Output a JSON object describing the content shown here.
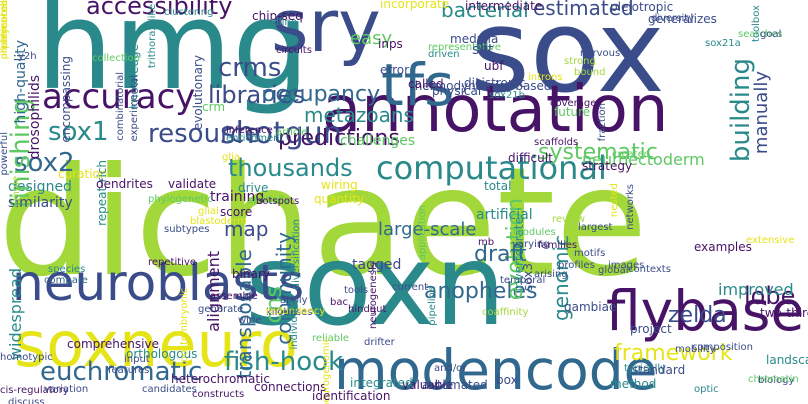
{
  "palette": {
    "green": "#a2d83a",
    "teal": "#2a8a8b",
    "navy": "#3a4c89",
    "purple": "#471366",
    "yellow": "#e5e419",
    "lightgreen": "#5ec962",
    "blue": "#31688e"
  },
  "words": [
    {
      "text": "dichaete",
      "color": "#a2d83a",
      "rot": 0
    },
    {
      "text": "sox",
      "color": "#3a4c89",
      "rot": 0
    },
    {
      "text": "hmg",
      "color": "#2a8a8b",
      "rot": 0
    },
    {
      "text": "soxn",
      "color": "#2a8a8b",
      "rot": 0
    },
    {
      "text": "annotation",
      "color": "#471366",
      "rot": 0
    },
    {
      "text": "sry",
      "color": "#3a4c89",
      "rot": 0
    },
    {
      "text": "soxneuro",
      "color": "#e5e419",
      "rot": 0
    },
    {
      "text": "neuroblasts",
      "color": "#3a4c89",
      "rot": 0
    },
    {
      "text": "flybase",
      "color": "#471366",
      "rot": 0
    },
    {
      "text": "modencode",
      "color": "#31688e",
      "rot": 0
    },
    {
      "text": "tfs",
      "color": "#31688e",
      "rot": 0
    },
    {
      "text": "computational",
      "color": "#2a8a8b",
      "rot": 0
    },
    {
      "text": "shotgun",
      "color": "#3a4c89",
      "rot": 0
    },
    {
      "text": "sox1",
      "color": "#2a8a8b",
      "rot": 0
    },
    {
      "text": "resource",
      "color": "#3a4c89",
      "rot": 0
    },
    {
      "text": "sox2",
      "color": "#31688e",
      "rot": 0
    },
    {
      "text": "accuracy",
      "color": "#471366",
      "rot": 0
    },
    {
      "text": "crms",
      "color": "#3a4c89",
      "rot": 0
    },
    {
      "text": "libraries",
      "color": "#3a4c89",
      "rot": 0
    },
    {
      "text": "occupancy",
      "color": "#31688e",
      "rot": 0
    },
    {
      "text": "metazoans",
      "color": "#2a8a8b",
      "rot": 0
    },
    {
      "text": "predictions",
      "color": "#471366",
      "rot": 0
    },
    {
      "text": "thousands",
      "color": "#2a8a8b",
      "rot": 0
    },
    {
      "text": "systematic",
      "color": "#5ec962",
      "rot": 0
    },
    {
      "text": "accessibility",
      "color": "#471366",
      "rot": 0
    },
    {
      "text": "bacterial",
      "color": "#2a8a8b",
      "rot": 0
    },
    {
      "text": "estimated",
      "color": "#3a4c89",
      "rot": 0
    },
    {
      "text": "finishing",
      "color": "#5ec962",
      "rot": 90
    },
    {
      "text": "building",
      "color": "#2a8a8b",
      "rot": 90
    },
    {
      "text": "euchromatic",
      "color": "#31688e",
      "rot": 0
    },
    {
      "text": "fish-hook",
      "color": "#2a8a8b",
      "rot": 0
    },
    {
      "text": "framework",
      "color": "#e5e419",
      "rot": 0
    },
    {
      "text": "anopheles",
      "color": "#31688e",
      "rot": 0
    },
    {
      "text": "lobe",
      "color": "#471366",
      "rot": 0
    },
    {
      "text": "zelda",
      "color": "#3a4c89",
      "rot": 0
    },
    {
      "text": "transposable",
      "color": "#31688e",
      "rot": 90
    },
    {
      "text": "community",
      "color": "#31688e",
      "rot": 90
    },
    {
      "text": "evolution",
      "color": "#5ec962",
      "rot": 90
    },
    {
      "text": "draft",
      "color": "#31688e",
      "rot": 0
    },
    {
      "text": "map",
      "color": "#3a4c89",
      "rot": 0
    },
    {
      "text": "cns",
      "color": "#5ec962",
      "rot": 90
    },
    {
      "text": "easy",
      "color": "#5ec962",
      "rot": 0
    },
    {
      "text": "manually",
      "color": "#3a4c89",
      "rot": 90
    },
    {
      "text": "comprehensive",
      "color": "#471366",
      "rot": 0
    },
    {
      "text": "orthologous",
      "color": "#2a8a8b",
      "rot": 0
    },
    {
      "text": "heterochromatic",
      "color": "#471366",
      "rot": 0
    },
    {
      "text": "connections",
      "color": "#471366",
      "rot": 0
    },
    {
      "text": "neuroectoderm",
      "color": "#5ec962",
      "rot": 0
    },
    {
      "text": "thermodynamics-based",
      "color": "#3a4c89",
      "rot": 0
    },
    {
      "text": "large-scale",
      "color": "#31688e",
      "rot": 0
    },
    {
      "text": "tagged",
      "color": "#3a4c89",
      "rot": 0
    },
    {
      "text": "examples",
      "color": "#471366",
      "rot": 0
    },
    {
      "text": "improved",
      "color": "#2a8a8b",
      "rot": 0
    },
    {
      "text": "genomic",
      "color": "#2a8a8b",
      "rot": 90
    },
    {
      "text": "binary",
      "color": "#471366",
      "rot": 0
    },
    {
      "text": "alignment",
      "color": "#471366",
      "rot": 90
    },
    {
      "text": "score",
      "color": "#471366",
      "rot": 0
    },
    {
      "text": "training",
      "color": "#471366",
      "rot": 0
    },
    {
      "text": "drive",
      "color": "#2a8a8b",
      "rot": 0
    },
    {
      "text": "challenges",
      "color": "#5ec962",
      "rot": 0
    },
    {
      "text": "wiring",
      "color": "#e5e419",
      "rot": 0
    },
    {
      "text": "quantity",
      "color": "#e5e419",
      "rot": 0
    },
    {
      "text": "total",
      "color": "#2a8a8b",
      "rot": 0
    },
    {
      "text": "artificial",
      "color": "#2a8a8b",
      "rot": 0
    },
    {
      "text": "strategy",
      "color": "#471366",
      "rot": 0
    },
    {
      "text": "designed",
      "color": "#2a8a8b",
      "rot": 0
    },
    {
      "text": "curation",
      "color": "#e5e419",
      "rot": 0
    },
    {
      "text": "similarity",
      "color": "#3a4c89",
      "rot": 0
    },
    {
      "text": "validate",
      "color": "#471366",
      "rot": 0
    },
    {
      "text": "widespread",
      "color": "#2a8a8b",
      "rot": 90
    },
    {
      "text": "species",
      "color": "#2a8a8b",
      "rot": 0
    },
    {
      "text": "compare",
      "color": "#31688e",
      "rot": 0
    },
    {
      "text": "assemble",
      "color": "#471366",
      "rot": 0
    },
    {
      "text": "generate",
      "color": "#3a4c89",
      "rot": 0
    },
    {
      "text": "kilobases",
      "color": "#3a4c89",
      "rot": 0
    },
    {
      "text": "redundancy",
      "color": "#e5e419",
      "rot": 0
    },
    {
      "text": "tools",
      "color": "#3a4c89",
      "rot": 0
    },
    {
      "text": "bac",
      "color": "#471366",
      "rot": 0
    },
    {
      "text": "apply",
      "color": "#3a4c89",
      "rot": 0
    },
    {
      "text": "reliable",
      "color": "#5ec962",
      "rot": 0
    },
    {
      "text": "hindgut",
      "color": "#471366",
      "rot": 0
    },
    {
      "text": "current",
      "color": "#3a4c89",
      "rot": 0
    },
    {
      "text": "wide",
      "color": "#3a4c89",
      "rot": 0
    },
    {
      "text": "mb",
      "color": "#471366",
      "rot": 0
    },
    {
      "text": "sox3",
      "color": "#3a4c89",
      "rot": 90
    },
    {
      "text": "gambiae",
      "color": "#3a4c89",
      "rot": 0
    },
    {
      "text": "two-thirds",
      "color": "#471366",
      "rot": 0
    },
    {
      "text": "high-quality",
      "color": "#31688e",
      "rot": 90
    },
    {
      "text": "drosophilids",
      "color": "#471366",
      "rot": 90
    },
    {
      "text": "encompassing",
      "color": "#3a4c89",
      "rot": 90
    },
    {
      "text": "knowledge",
      "color": "#2a8a8b",
      "rot": 90
    },
    {
      "text": "evolutionary",
      "color": "#3a4c89",
      "rot": 90
    },
    {
      "text": "crm",
      "color": "#5ec962",
      "rot": 0
    },
    {
      "text": "clustering",
      "color": "#2a8a8b",
      "rot": 0
    },
    {
      "text": "chip-seq",
      "color": "#471366",
      "rot": 0
    },
    {
      "text": "midline",
      "color": "#2a8a8b",
      "rot": 0
    },
    {
      "text": "circuits",
      "color": "#471366",
      "rot": 0
    },
    {
      "text": "incorporate",
      "color": "#e5e419",
      "rot": 0
    },
    {
      "text": "inps",
      "color": "#471366",
      "rot": 0
    },
    {
      "text": "medulla",
      "color": "#3a4c89",
      "rot": 0
    },
    {
      "text": "intermediate",
      "color": "#471366",
      "rot": 0
    },
    {
      "text": "driven",
      "color": "#2a8a8b",
      "rot": 0
    },
    {
      "text": "representative",
      "color": "#5ec962",
      "rot": 0
    },
    {
      "text": "error",
      "color": "#3a4c89",
      "rot": 0
    },
    {
      "text": "called",
      "color": "#471366",
      "rot": 0
    },
    {
      "text": "physical",
      "color": "#3a4c89",
      "rot": 0
    },
    {
      "text": "dicistronic",
      "color": "#3a4c89",
      "rot": 0
    },
    {
      "text": "set",
      "color": "#3a4c89",
      "rot": 0
    },
    {
      "text": "sox21b",
      "color": "#2a8a8b",
      "rot": 0
    },
    {
      "text": "ubf",
      "color": "#471366",
      "rot": 0
    },
    {
      "text": "pleiotropic",
      "color": "#3a4c89",
      "rot": 0
    },
    {
      "text": "generalizes",
      "color": "#3a4c89",
      "rot": 0
    },
    {
      "text": "diversity",
      "color": "#3a4c89",
      "rot": 0
    },
    {
      "text": "nervous",
      "color": "#3a4c89",
      "rot": 0
    },
    {
      "text": "introns",
      "color": "#e5e419",
      "rot": 0
    },
    {
      "text": "strong",
      "color": "#a2d83a",
      "rot": 0
    },
    {
      "text": "sox21a",
      "color": "#2a8a8b",
      "rot": 0
    },
    {
      "text": "searches",
      "color": "#5ec962",
      "rot": 0
    },
    {
      "text": "toolbox",
      "color": "#2a8a8b",
      "rot": 90
    },
    {
      "text": "goal",
      "color": "#3a4c89",
      "rot": 0
    },
    {
      "text": "trithorax-like",
      "color": "#2a8a8b",
      "rot": 90
    },
    {
      "text": "collection",
      "color": "#5ec962",
      "rot": 0
    },
    {
      "text": "combinatorial",
      "color": "#3a4c89",
      "rot": 90
    },
    {
      "text": "experimental",
      "color": "#3a4c89",
      "rot": 90
    },
    {
      "text": "y2h",
      "color": "#3a4c89",
      "rot": 0
    },
    {
      "text": "repeat-rich",
      "color": "#2a8a8b",
      "rot": 90
    },
    {
      "text": "dendrites",
      "color": "#471366",
      "rot": 0
    },
    {
      "text": "inference",
      "color": "#471366",
      "rot": 0
    },
    {
      "text": "enrichment",
      "color": "#2a8a8b",
      "rot": 0
    },
    {
      "text": "article",
      "color": "#5ec962",
      "rot": 0
    },
    {
      "text": "coverage",
      "color": "#471366",
      "rot": 0
    },
    {
      "text": "scaffolds",
      "color": "#471366",
      "rot": 0
    },
    {
      "text": "glia",
      "color": "#e5e419",
      "rot": 0
    },
    {
      "text": "glial",
      "color": "#e5e419",
      "rot": 0
    },
    {
      "text": "spatially",
      "color": "#5ec962",
      "rot": 0
    },
    {
      "text": "hotspots",
      "color": "#471366",
      "rot": 0
    },
    {
      "text": "difficult",
      "color": "#471366",
      "rot": 0
    },
    {
      "text": "nested",
      "color": "#e5e419",
      "rot": 90
    },
    {
      "text": "networks",
      "color": "#3a4c89",
      "rot": 90
    },
    {
      "text": "extensive",
      "color": "#e5e419",
      "rot": 0
    },
    {
      "text": "created",
      "color": "#5ec962",
      "rot": 0
    },
    {
      "text": "fraction",
      "color": "#3a4c89",
      "rot": 90
    },
    {
      "text": "bound",
      "color": "#a2d83a",
      "rot": 0
    },
    {
      "text": "future",
      "color": "#5ec962",
      "rot": 0
    },
    {
      "text": "powerful",
      "color": "#3a4c89",
      "rot": 90
    },
    {
      "text": "simple",
      "color": "#a2d83a",
      "rot": 90
    },
    {
      "text": "blastoderm",
      "color": "#e5e419",
      "rot": 0
    },
    {
      "text": "subtypes",
      "color": "#3a4c89",
      "rot": 0
    },
    {
      "text": "review",
      "color": "#a2d83a",
      "rot": 0
    },
    {
      "text": "invertebrate",
      "color": "#2a8a8b",
      "rot": 90
    },
    {
      "text": "modules",
      "color": "#5ec962",
      "rot": 0
    },
    {
      "text": "largest",
      "color": "#3a4c89",
      "rot": 0
    },
    {
      "text": "families",
      "color": "#471366",
      "rot": 0
    },
    {
      "text": "arising",
      "color": "#3a4c89",
      "rot": 0
    },
    {
      "text": "varying",
      "color": "#3a4c89",
      "rot": 0
    },
    {
      "text": "motifs",
      "color": "#3a4c89",
      "rot": 0
    },
    {
      "text": "profiles",
      "color": "#3a4c89",
      "rot": 0
    },
    {
      "text": "global",
      "color": "#3a4c89",
      "rot": 0
    },
    {
      "text": "images",
      "color": "#3a4c89",
      "rot": 0
    },
    {
      "text": "project",
      "color": "#3a4c89",
      "rot": 0
    },
    {
      "text": "mobility",
      "color": "#3a4c89",
      "rot": 0
    },
    {
      "text": "contexts",
      "color": "#3a4c89",
      "rot": 0
    },
    {
      "text": "temporal",
      "color": "#3a4c89",
      "rot": 0
    },
    {
      "text": "coaffinity",
      "color": "#a2d83a",
      "rot": 0
    },
    {
      "text": "pipeline",
      "color": "#2a8a8b",
      "rot": 90
    },
    {
      "text": "application",
      "color": "#5ec962",
      "rot": 90
    },
    {
      "text": "diversification",
      "color": "#2a8a8b",
      "rot": 90
    },
    {
      "text": "neurogenesis",
      "color": "#471366",
      "rot": 90
    },
    {
      "text": "neurogenomic",
      "color": "#e5e419",
      "rot": 90
    },
    {
      "text": "individual",
      "color": "#2a8a8b",
      "rot": 90
    },
    {
      "text": "and/or",
      "color": "#3a4c89",
      "rot": 0
    },
    {
      "text": "valuable",
      "color": "#471366",
      "rot": 0
    },
    {
      "text": "drifter",
      "color": "#3a4c89",
      "rot": 0
    },
    {
      "text": "typically",
      "color": "#2a8a8b",
      "rot": 0
    },
    {
      "text": "composition",
      "color": "#3a4c89",
      "rot": 0
    },
    {
      "text": "standard",
      "color": "#3a4c89",
      "rot": 0
    },
    {
      "text": "biology",
      "color": "#3a4c89",
      "rot": 0
    },
    {
      "text": "landscapes",
      "color": "#2a8a8b",
      "rot": 0
    },
    {
      "text": "chromatin",
      "color": "#5ec962",
      "rot": 0
    },
    {
      "text": "method",
      "color": "#2a8a8b",
      "rot": 0
    },
    {
      "text": "optic",
      "color": "#2a8a8b",
      "rot": 0
    },
    {
      "text": "box",
      "color": "#3a4c89",
      "rot": 0
    },
    {
      "text": "automated",
      "color": "#3a4c89",
      "rot": 0
    },
    {
      "text": "integrated",
      "color": "#2a8a8b",
      "rot": 0
    },
    {
      "text": "identification",
      "color": "#471366",
      "rot": 0
    },
    {
      "text": "constructs",
      "color": "#471366",
      "rot": 0
    },
    {
      "text": "candidates",
      "color": "#3a4c89",
      "rot": 0
    },
    {
      "text": "cis-regulatory",
      "color": "#471366",
      "rot": 0
    },
    {
      "text": "discuss",
      "color": "#3a4c89",
      "rot": 0
    },
    {
      "text": "variation",
      "color": "#3a4c89",
      "rot": 0
    },
    {
      "text": "homotypic",
      "color": "#3a4c89",
      "rot": 0
    },
    {
      "text": "features",
      "color": "#3a4c89",
      "rot": 0
    },
    {
      "text": "input",
      "color": "#3a4c89",
      "rot": 0
    },
    {
      "text": "phylogenetic",
      "color": "#5ec962",
      "rot": 0
    },
    {
      "text": "repetitive",
      "color": "#471366",
      "rot": 0
    },
    {
      "text": "postembryonic",
      "color": "#e5e419",
      "rot": 90
    },
    {
      "text": "preferences",
      "color": "#e5e419",
      "rot": 90
    },
    {
      "text": "illuminated",
      "color": "#e5e419",
      "rot": 90
    },
    {
      "text": "polycomb",
      "color": "#e5e419",
      "rot": 90
    }
  ]
}
